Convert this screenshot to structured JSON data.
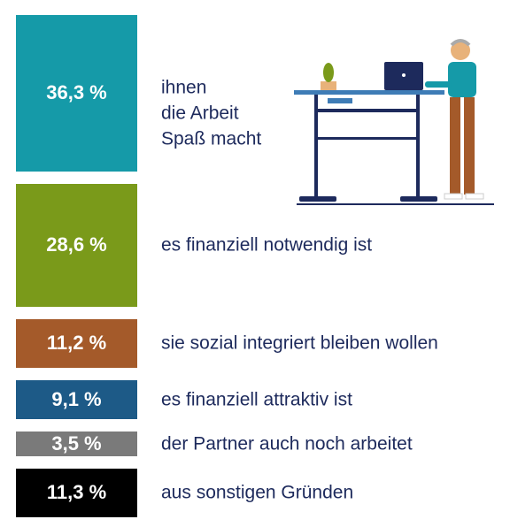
{
  "chart_data": {
    "type": "bar",
    "categories": [
      "ihnen\ndie Arbeit\nSpaß macht",
      "es finanziell notwendig ist",
      "sie sozial integriert bleiben wollen",
      "es finanziell attraktiv ist",
      "der Partner auch noch arbeitet",
      "aus sonstigen Gründen"
    ],
    "values": [
      36.3,
      28.6,
      11.2,
      9.1,
      3.5,
      11.3
    ],
    "value_labels": [
      "36,3 %",
      "28,6 %",
      "11,2 %",
      "9,1 %",
      "3,5 %",
      "11,3 %"
    ],
    "colors": [
      "#159aa8",
      "#7a9a1a",
      "#a45a2a",
      "#1d5a87",
      "#7a7a7a",
      "#000000"
    ]
  }
}
